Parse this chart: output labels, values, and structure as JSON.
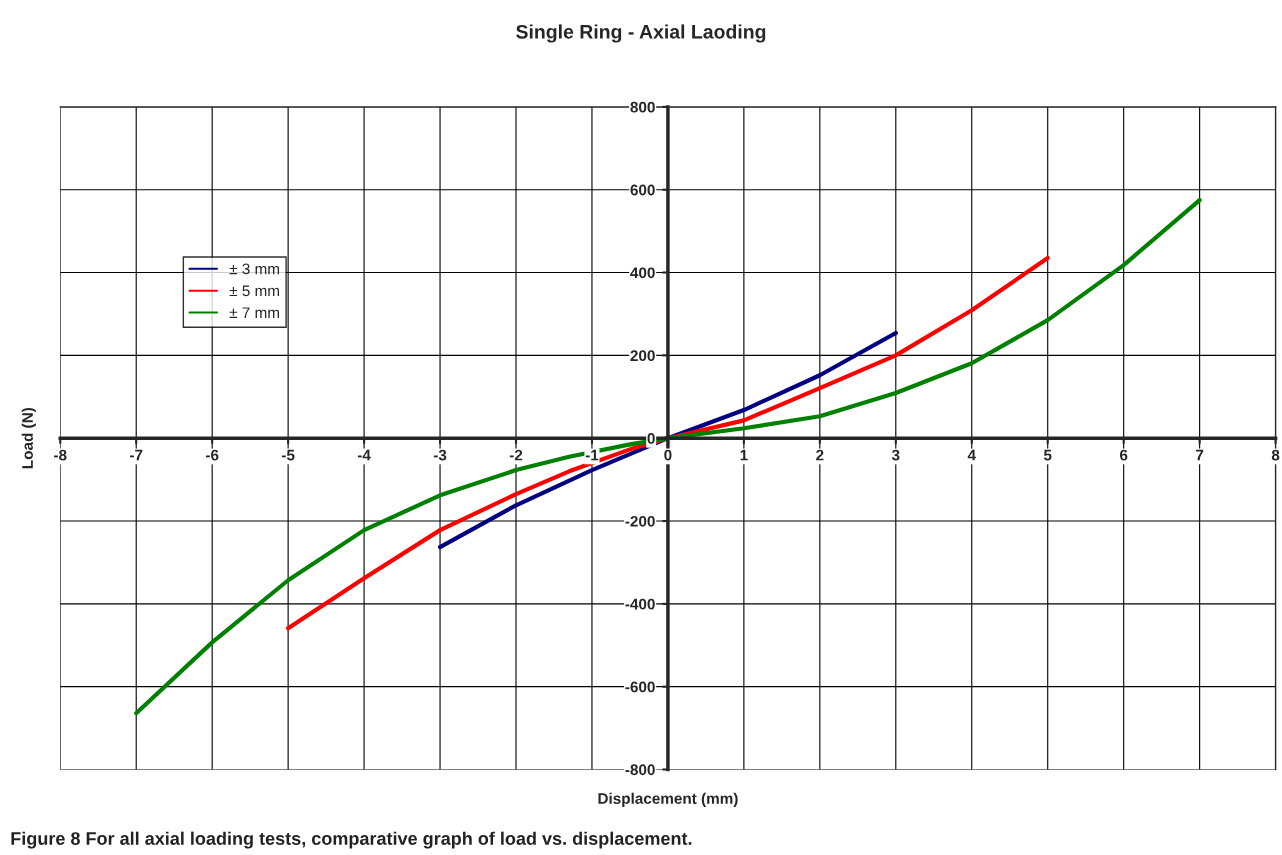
{
  "chart_data": {
    "type": "line",
    "title": "Single Ring - Axial Laoding",
    "xlabel": "Displacement (mm)",
    "ylabel": "Load (N)",
    "annotations": [
      "Figure 8 For all axial loading tests, comparative graph of load vs. displacement."
    ],
    "xlim": [
      -8,
      8
    ],
    "xticks": [
      -8,
      -7,
      -6,
      -5,
      -4,
      -3,
      -2,
      -1,
      0,
      1,
      2,
      3,
      4,
      5,
      6,
      7,
      8
    ],
    "ylim": [
      -800,
      800
    ],
    "yticks": [
      -800,
      -600,
      -400,
      -200,
      0,
      200,
      400,
      600,
      800
    ],
    "grid": true,
    "legend": "top left",
    "marker": "none",
    "line_style": "solid",
    "series": [
      {
        "name": "± 3 mm",
        "color": "#000080",
        "x": [
          -3,
          -2,
          -1,
          0,
          1,
          2,
          3
        ],
        "values": [
          -263,
          -162,
          -77,
          0,
          68,
          152,
          254
        ]
      },
      {
        "name": "± 5 mm",
        "color": "#ff0000",
        "x": [
          -5,
          -4,
          -3,
          -2,
          -1.3,
          -0.5,
          0,
          1,
          2,
          3,
          4,
          5
        ],
        "values": [
          -459,
          -338,
          -222,
          -135,
          -80,
          -27,
          0,
          43,
          121,
          200,
          309,
          435
        ]
      },
      {
        "name": "± 7 mm",
        "color": "#008000",
        "x": [
          -7,
          -6,
          -5,
          -4,
          -3,
          -2,
          -1.3,
          -0.5,
          0,
          1,
          2,
          3,
          4,
          5,
          6,
          7
        ],
        "values": [
          -664,
          -493,
          -343,
          -222,
          -138,
          -77,
          -45,
          -15,
          0,
          24,
          53,
          109,
          181,
          285,
          418,
          575
        ]
      }
    ]
  }
}
